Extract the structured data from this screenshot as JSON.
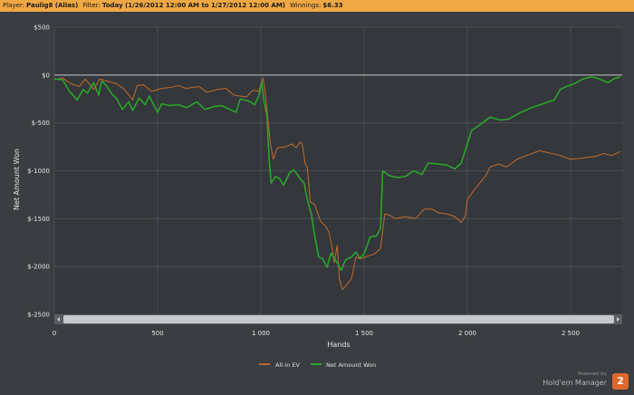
{
  "header": {
    "player_label": "Player:",
    "player_value": "Paulig8 (Alias)",
    "filter_label": "Filter:",
    "filter_value": "Today (1/26/2012 12:00 AM to 1/27/2012 12:00 AM)",
    "winnings_label": "Winnings:",
    "winnings_value": "$6.33"
  },
  "branding": {
    "powered_by": "Powered by",
    "product": "Hold'em Manager",
    "logo_text": "2"
  },
  "colors": {
    "header_bg": "#f0a844",
    "background": "#3a3d41",
    "all_in_ev": "#b8672e",
    "net_amount_won": "#2aa52a",
    "zero_line": "#bfc3c7"
  },
  "chart_data": {
    "type": "line",
    "xlabel": "Hands",
    "ylabel": "Net Amount Won",
    "xlim": [
      0,
      2750
    ],
    "ylim": [
      -2500,
      500
    ],
    "x_ticks": [
      0,
      500,
      1000,
      1500,
      2000,
      2500
    ],
    "x_tick_labels": [
      "0",
      "500",
      "1 000",
      "1 500",
      "2 000",
      "2 500"
    ],
    "y_ticks": [
      500,
      0,
      -500,
      -1000,
      -1500,
      -2000,
      -2500
    ],
    "y_tick_labels": [
      "$500",
      "$0",
      "$-500",
      "$-1000",
      "$-1500",
      "$-2000",
      "$-2500"
    ],
    "grid": true,
    "legend_position": "bottom-center",
    "series": [
      {
        "name": "All-in EV",
        "color": "#b8672e",
        "points": [
          [
            0,
            -50
          ],
          [
            40,
            -30
          ],
          [
            80,
            -90
          ],
          [
            120,
            -120
          ],
          [
            150,
            -40
          ],
          [
            190,
            -150
          ],
          [
            220,
            -40
          ],
          [
            250,
            -60
          ],
          [
            300,
            -90
          ],
          [
            340,
            -150
          ],
          [
            380,
            -260
          ],
          [
            400,
            -110
          ],
          [
            430,
            -100
          ],
          [
            470,
            -170
          ],
          [
            520,
            -140
          ],
          [
            560,
            -130
          ],
          [
            600,
            -110
          ],
          [
            640,
            -140
          ],
          [
            700,
            -120
          ],
          [
            740,
            -180
          ],
          [
            790,
            -150
          ],
          [
            830,
            -140
          ],
          [
            870,
            -210
          ],
          [
            930,
            -230
          ],
          [
            960,
            -160
          ],
          [
            990,
            -170
          ],
          [
            1010,
            -30
          ],
          [
            1020,
            -160
          ],
          [
            1045,
            -700
          ],
          [
            1060,
            -880
          ],
          [
            1080,
            -760
          ],
          [
            1120,
            -750
          ],
          [
            1150,
            -720
          ],
          [
            1170,
            -760
          ],
          [
            1190,
            -700
          ],
          [
            1200,
            -720
          ],
          [
            1215,
            -930
          ],
          [
            1225,
            -960
          ],
          [
            1240,
            -1330
          ],
          [
            1260,
            -1350
          ],
          [
            1290,
            -1530
          ],
          [
            1310,
            -1570
          ],
          [
            1330,
            -1640
          ],
          [
            1345,
            -1800
          ],
          [
            1355,
            -1960
          ],
          [
            1370,
            -1780
          ],
          [
            1380,
            -2130
          ],
          [
            1395,
            -2240
          ],
          [
            1420,
            -2180
          ],
          [
            1440,
            -2120
          ],
          [
            1460,
            -1900
          ],
          [
            1480,
            -1920
          ],
          [
            1520,
            -1890
          ],
          [
            1550,
            -1870
          ],
          [
            1580,
            -1810
          ],
          [
            1600,
            -1450
          ],
          [
            1620,
            -1460
          ],
          [
            1650,
            -1500
          ],
          [
            1700,
            -1480
          ],
          [
            1750,
            -1500
          ],
          [
            1790,
            -1400
          ],
          [
            1830,
            -1400
          ],
          [
            1860,
            -1440
          ],
          [
            1900,
            -1450
          ],
          [
            1940,
            -1480
          ],
          [
            1970,
            -1540
          ],
          [
            1990,
            -1480
          ],
          [
            2000,
            -1300
          ],
          [
            2030,
            -1210
          ],
          [
            2060,
            -1130
          ],
          [
            2090,
            -1050
          ],
          [
            2110,
            -960
          ],
          [
            2150,
            -930
          ],
          [
            2190,
            -960
          ],
          [
            2240,
            -880
          ],
          [
            2300,
            -830
          ],
          [
            2350,
            -790
          ],
          [
            2410,
            -820
          ],
          [
            2450,
            -840
          ],
          [
            2500,
            -880
          ],
          [
            2550,
            -870
          ],
          [
            2580,
            -860
          ],
          [
            2620,
            -850
          ],
          [
            2660,
            -820
          ],
          [
            2700,
            -840
          ],
          [
            2740,
            -800
          ]
        ]
      },
      {
        "name": "Net Amount Won",
        "color": "#2aa52a",
        "points": [
          [
            0,
            -40
          ],
          [
            40,
            -50
          ],
          [
            70,
            -160
          ],
          [
            110,
            -260
          ],
          [
            140,
            -150
          ],
          [
            160,
            -190
          ],
          [
            190,
            -80
          ],
          [
            215,
            -210
          ],
          [
            230,
            -60
          ],
          [
            255,
            -120
          ],
          [
            280,
            -200
          ],
          [
            300,
            -240
          ],
          [
            330,
            -360
          ],
          [
            360,
            -280
          ],
          [
            380,
            -370
          ],
          [
            410,
            -240
          ],
          [
            440,
            -310
          ],
          [
            460,
            -220
          ],
          [
            500,
            -390
          ],
          [
            520,
            -300
          ],
          [
            560,
            -320
          ],
          [
            600,
            -310
          ],
          [
            640,
            -340
          ],
          [
            690,
            -280
          ],
          [
            730,
            -360
          ],
          [
            770,
            -330
          ],
          [
            810,
            -320
          ],
          [
            850,
            -360
          ],
          [
            880,
            -390
          ],
          [
            900,
            -250
          ],
          [
            940,
            -270
          ],
          [
            970,
            -310
          ],
          [
            990,
            -220
          ],
          [
            1005,
            -80
          ],
          [
            1015,
            -270
          ],
          [
            1030,
            -430
          ],
          [
            1040,
            -870
          ],
          [
            1050,
            -1130
          ],
          [
            1070,
            -1060
          ],
          [
            1090,
            -1080
          ],
          [
            1110,
            -1150
          ],
          [
            1140,
            -1020
          ],
          [
            1160,
            -990
          ],
          [
            1190,
            -1080
          ],
          [
            1210,
            -1130
          ],
          [
            1220,
            -1250
          ],
          [
            1230,
            -1340
          ],
          [
            1245,
            -1460
          ],
          [
            1260,
            -1670
          ],
          [
            1280,
            -1900
          ],
          [
            1300,
            -1920
          ],
          [
            1320,
            -2010
          ],
          [
            1340,
            -1860
          ],
          [
            1360,
            -1930
          ],
          [
            1375,
            -1980
          ],
          [
            1390,
            -2040
          ],
          [
            1410,
            -1930
          ],
          [
            1440,
            -1900
          ],
          [
            1460,
            -1850
          ],
          [
            1480,
            -1910
          ],
          [
            1500,
            -1870
          ],
          [
            1530,
            -1690
          ],
          [
            1560,
            -1680
          ],
          [
            1580,
            -1600
          ],
          [
            1590,
            -1000
          ],
          [
            1620,
            -1050
          ],
          [
            1660,
            -1070
          ],
          [
            1700,
            -1060
          ],
          [
            1740,
            -1000
          ],
          [
            1780,
            -1040
          ],
          [
            1810,
            -920
          ],
          [
            1860,
            -930
          ],
          [
            1900,
            -940
          ],
          [
            1940,
            -980
          ],
          [
            1970,
            -920
          ],
          [
            2000,
            -720
          ],
          [
            2020,
            -580
          ],
          [
            2060,
            -520
          ],
          [
            2110,
            -440
          ],
          [
            2160,
            -470
          ],
          [
            2200,
            -460
          ],
          [
            2250,
            -400
          ],
          [
            2300,
            -350
          ],
          [
            2340,
            -320
          ],
          [
            2380,
            -290
          ],
          [
            2420,
            -260
          ],
          [
            2450,
            -150
          ],
          [
            2480,
            -120
          ],
          [
            2520,
            -90
          ],
          [
            2560,
            -40
          ],
          [
            2600,
            -20
          ],
          [
            2640,
            -40
          ],
          [
            2680,
            -80
          ],
          [
            2710,
            -40
          ],
          [
            2740,
            -20
          ]
        ]
      }
    ]
  }
}
